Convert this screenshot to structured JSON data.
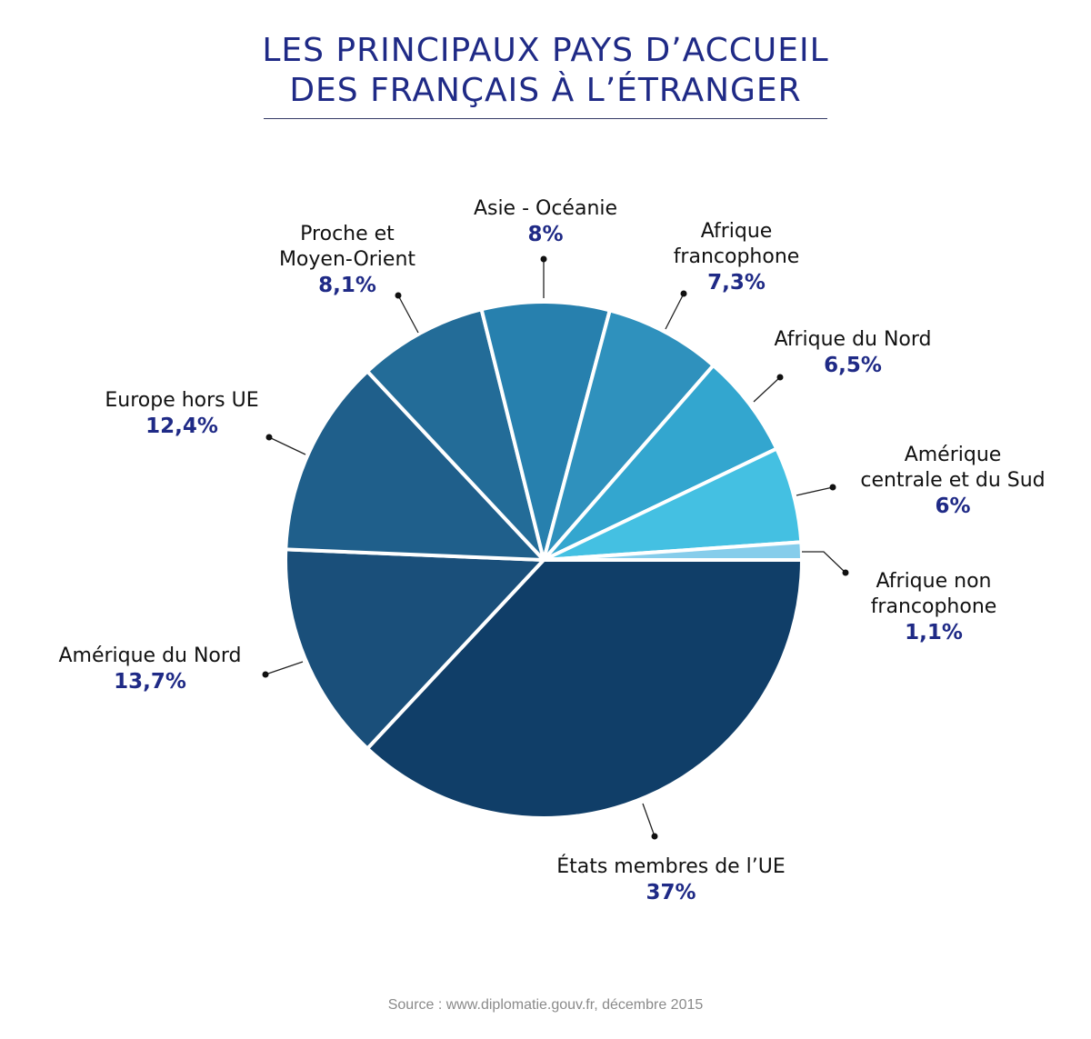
{
  "title_line1": "LES PRINCIPAUX PAYS D’ACCUEIL",
  "title_line2": "DES FRANÇAIS À L’ÉTRANGER",
  "source": "Source : www.diplomatie.gouv.fr, décembre 2015",
  "chart_data": {
    "type": "pie",
    "title": "LES PRINCIPAUX PAYS D’ACCUEIL DES FRANÇAIS À L’ÉTRANGER",
    "start_angle_deg": 0,
    "direction": "clockwise",
    "slices": [
      {
        "label": "États membres de l’UE",
        "value": 37,
        "display": "37%",
        "color": "#103e68"
      },
      {
        "label": "Amérique du Nord",
        "value": 13.7,
        "display": "13,7%",
        "color": "#1a4f7a"
      },
      {
        "label": "Europe hors UE",
        "value": 12.4,
        "display": "12,4%",
        "color": "#1f5f8b"
      },
      {
        "label": "Proche et Moyen-Orient",
        "value": 8.1,
        "display": "8,1%",
        "color": "#236c98"
      },
      {
        "label": "Asie - Océanie",
        "value": 8,
        "display": "8%",
        "color": "#2780ae"
      },
      {
        "label": "Afrique francophone",
        "value": 7.3,
        "display": "7,3%",
        "color": "#2f91bd"
      },
      {
        "label": "Afrique du Nord",
        "value": 6.5,
        "display": "6,5%",
        "color": "#33a6cf"
      },
      {
        "label": "Amérique centrale et du Sud",
        "value": 6,
        "display": "6%",
        "color": "#44c0e2"
      },
      {
        "label": "Afrique non francophone",
        "value": 1.1,
        "display": "1,1%",
        "color": "#86cdeb"
      }
    ]
  },
  "labels": {
    "eu": {
      "name": "États membres de l’UE",
      "pct": "37%"
    },
    "north_america": {
      "name": "Amérique du Nord",
      "pct": "13,7%"
    },
    "europe_non_eu": {
      "name": "Europe hors UE",
      "pct": "12,4%"
    },
    "middle_east_1": "Proche et",
    "middle_east_2": "Moyen-Orient",
    "middle_east_pct": "8,1%",
    "asia": {
      "name": "Asie - Océanie",
      "pct": "8%"
    },
    "afr_franco_1": "Afrique",
    "afr_franco_2": "francophone",
    "afr_franco_pct": "7,3%",
    "north_africa": {
      "name": "Afrique du Nord",
      "pct": "6,5%"
    },
    "latam_1": "Amérique",
    "latam_2": "centrale et du Sud",
    "latam_pct": "6%",
    "afr_nonfranco_1": "Afrique non",
    "afr_nonfranco_2": "francophone",
    "afr_nonfranco_pct": "1,1%"
  }
}
